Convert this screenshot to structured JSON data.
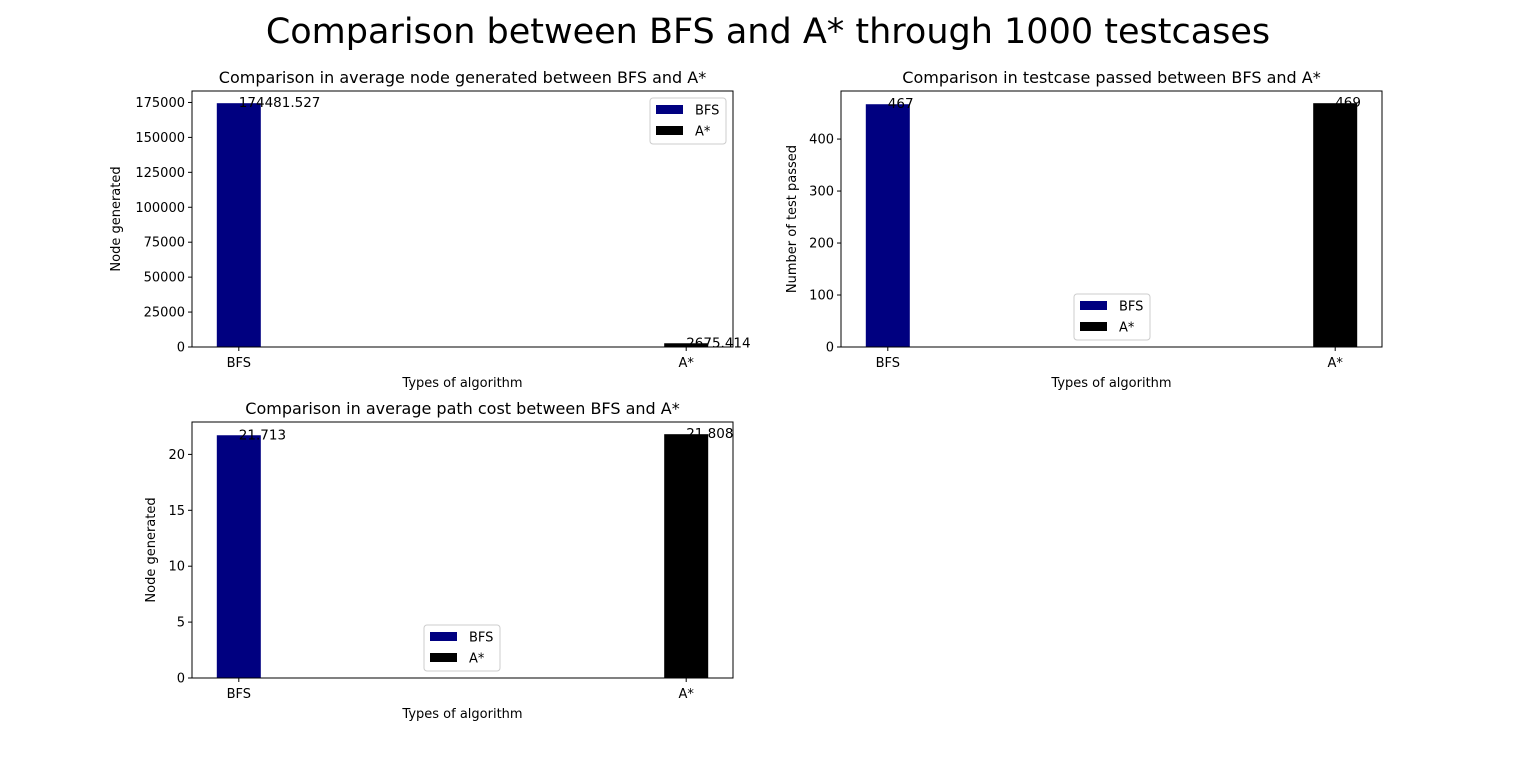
{
  "figure": {
    "suptitle": "Comparison between BFS and A* through 1000 testcases"
  },
  "chart_data": [
    {
      "type": "bar",
      "title": "Comparison in average node generated between BFS and A*",
      "xlabel": "Types of algorithm",
      "ylabel": "Node generated",
      "categories": [
        "BFS",
        "A*"
      ],
      "series": [
        {
          "name": "BFS",
          "color": "#000080",
          "values": [
            174481.527,
            null
          ]
        },
        {
          "name": "A*",
          "color": "#000000",
          "values": [
            null,
            2675.414
          ]
        }
      ],
      "value_labels": [
        "174481.527",
        "2675.414"
      ],
      "ylim": [
        0,
        183205.6
      ],
      "yticks": [
        0,
        25000,
        50000,
        75000,
        100000,
        125000,
        150000,
        175000
      ],
      "yticklabels": [
        "0",
        "25000",
        "50000",
        "75000",
        "100000",
        "125000",
        "150000",
        "175000"
      ],
      "legend": "upper right",
      "grid": false
    },
    {
      "type": "bar",
      "title": "Comparison in testcase passed between BFS and A*",
      "xlabel": "Types of algorithm",
      "ylabel": "Number of test passed",
      "categories": [
        "BFS",
        "A*"
      ],
      "series": [
        {
          "name": "BFS",
          "color": "#000080",
          "values": [
            467,
            null
          ]
        },
        {
          "name": "A*",
          "color": "#000000",
          "values": [
            null,
            469
          ]
        }
      ],
      "value_labels": [
        "467",
        "469"
      ],
      "ylim": [
        0,
        492.45
      ],
      "yticks": [
        0,
        100,
        200,
        300,
        400
      ],
      "yticklabels": [
        "0",
        "100",
        "200",
        "300",
        "400"
      ],
      "legend": "lower center",
      "grid": false
    },
    {
      "type": "bar",
      "title": "Comparison in average path cost between BFS and A*",
      "xlabel": "Types of algorithm",
      "ylabel": "Node generated",
      "categories": [
        "BFS",
        "A*"
      ],
      "series": [
        {
          "name": "BFS",
          "color": "#000080",
          "values": [
            21.713,
            null
          ]
        },
        {
          "name": "A*",
          "color": "#000000",
          "values": [
            null,
            21.808
          ]
        }
      ],
      "value_labels": [
        "21.713",
        "21.808"
      ],
      "ylim": [
        0,
        22.8984
      ],
      "yticks": [
        0,
        5,
        10,
        15,
        20
      ],
      "yticklabels": [
        "0",
        "5",
        "10",
        "15",
        "20"
      ],
      "legend": "lower center",
      "grid": false
    }
  ]
}
